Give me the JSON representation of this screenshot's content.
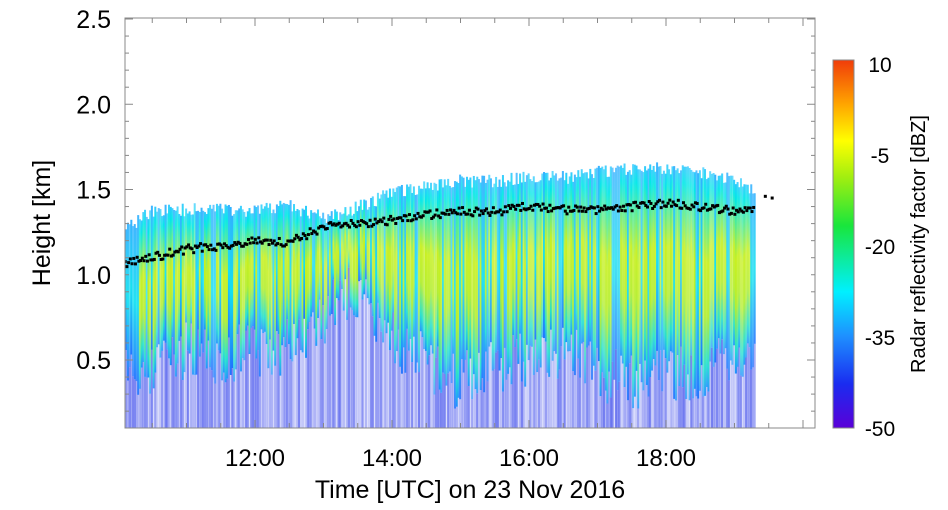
{
  "chart_data": {
    "type": "heatmap",
    "xlabel": "Time [UTC] on 23 Nov 2016",
    "ylabel": "Height [km]",
    "xlim": [
      "10:06",
      "20:11"
    ],
    "ylim": [
      0.1,
      2.5
    ],
    "x_ticks": [
      "12:00",
      "14:00",
      "16:00",
      "18:00"
    ],
    "y_ticks": [
      "0.5",
      "1.0",
      "1.5",
      "2.0",
      "2.5"
    ],
    "colorbar": {
      "label": "Radar reflectivity factor [dBZ]",
      "range": [
        -50,
        10
      ],
      "ticks": [
        "-50",
        "-35",
        "-20",
        "-5",
        "10"
      ],
      "colormap": [
        "#5a00d8",
        "#1a2cf0",
        "#1e90ff",
        "#00f0ff",
        "#19e63c",
        "#a0ee10",
        "#ffff00",
        "#ffa500",
        "#f03c0a"
      ]
    },
    "time_hours": [
      10.15,
      10.5,
      11.0,
      11.5,
      12.0,
      12.5,
      13.0,
      13.5,
      14.0,
      14.5,
      15.0,
      15.5,
      16.0,
      16.5,
      17.0,
      17.5,
      18.0,
      18.5,
      19.0,
      19.3
    ],
    "echo_top_km": [
      1.28,
      1.38,
      1.38,
      1.38,
      1.38,
      1.4,
      1.33,
      1.4,
      1.48,
      1.52,
      1.55,
      1.55,
      1.57,
      1.57,
      1.6,
      1.62,
      1.62,
      1.6,
      1.55,
      1.5
    ],
    "dense_echo_base_km": [
      0.4,
      0.35,
      0.5,
      0.45,
      0.5,
      0.5,
      0.7,
      0.85,
      0.55,
      0.4,
      0.3,
      0.4,
      0.45,
      0.5,
      0.35,
      0.3,
      0.35,
      0.35,
      0.45,
      0.5
    ],
    "peak_reflectivity_dbz": [
      -25,
      -18,
      -12,
      -10,
      -12,
      -15,
      -20,
      -18,
      -14,
      -12,
      -10,
      -11,
      -10,
      -10,
      -8,
      -7,
      -7,
      -9,
      -14,
      -25
    ],
    "black_markers_km": [
      1.07,
      1.1,
      1.15,
      1.17,
      1.2,
      1.19,
      1.28,
      1.3,
      1.32,
      1.35,
      1.37,
      1.37,
      1.4,
      1.38,
      1.38,
      1.4,
      1.42,
      1.4,
      1.37,
      1.38
    ],
    "grid": false
  }
}
